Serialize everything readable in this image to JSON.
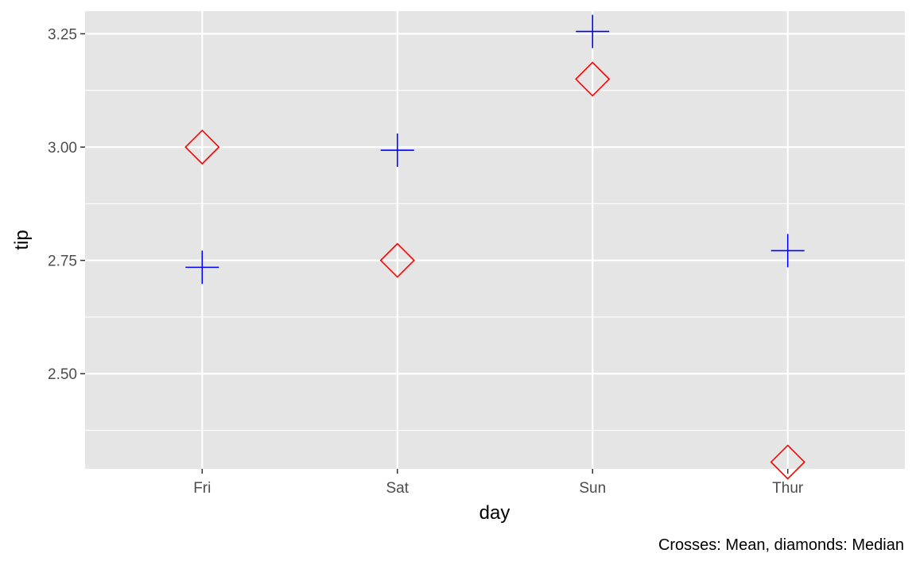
{
  "chart_data": {
    "type": "scatter",
    "title": "",
    "xlabel": "day",
    "ylabel": "tip",
    "caption": "Crosses: Mean, diamonds: Median",
    "categories": [
      "Fri",
      "Sat",
      "Sun",
      "Thur"
    ],
    "ylim": [
      2.29,
      3.3
    ],
    "yticks": [
      2.5,
      2.75,
      3.0,
      3.25
    ],
    "ytick_labels": [
      "2.50",
      "2.75",
      "3.00",
      "3.25"
    ],
    "grid": true,
    "series": [
      {
        "marker": "cross",
        "color": "#0000ff",
        "values": [
          2.734737,
          2.993103,
          3.255132,
          2.771452
        ]
      },
      {
        "marker": "diamond",
        "color": "#ff0000",
        "values": [
          3.0,
          2.75,
          3.15,
          2.305
        ]
      }
    ],
    "panel_background": "#e5e5e5",
    "grid_color": "#ffffff"
  }
}
